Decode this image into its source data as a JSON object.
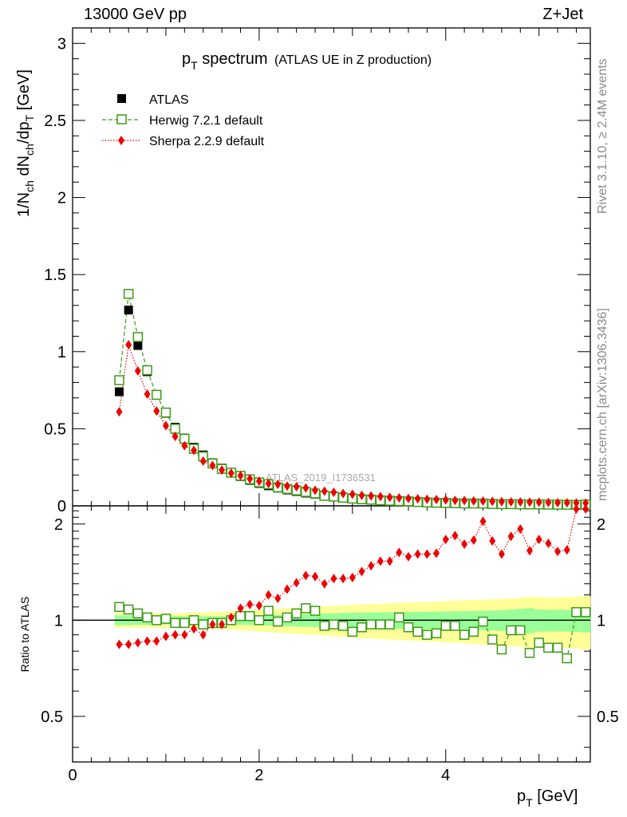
{
  "header": {
    "energy_label": "13000 GeV pp",
    "process_label": "Z+Jet",
    "analysis_watermark": "ATLAS_2019_I1736531"
  },
  "side_text": {
    "rivet": "Rivet 3.1.10, ≥ 2.4M events",
    "mcplots": "mcplots.cern.ch [arXiv:1306.3436]"
  },
  "colors": {
    "atlas": "#000000",
    "herwig": "#3a9b16",
    "sherpa": "#ee0000",
    "band_inner": "#99ff99",
    "band_outer": "#ffff99"
  },
  "chart_data": [
    {
      "type": "scatter",
      "title_main": "p",
      "title_sub": "T",
      "title_rest": " spectrum",
      "title_note": "(ATLAS UE in Z production)",
      "ylabel": "1/N_ch dN_ch/dp_T [GeV]",
      "xlim": [
        0,
        5.55
      ],
      "ylim": [
        0,
        3.1
      ],
      "yticks": [
        "0",
        "0.5",
        "1",
        "1.5",
        "2",
        "2.5",
        "3"
      ],
      "legend_position": "top-left",
      "x": [
        0.5,
        0.6,
        0.7,
        0.8,
        0.9,
        1.0,
        1.1,
        1.2,
        1.3,
        1.4,
        1.5,
        1.6,
        1.7,
        1.8,
        1.9,
        2.0,
        2.1,
        2.2,
        2.3,
        2.4,
        2.5,
        2.6,
        2.7,
        2.8,
        2.9,
        3.0,
        3.1,
        3.2,
        3.3,
        3.4,
        3.5,
        3.6,
        3.7,
        3.8,
        3.9,
        4.0,
        4.1,
        4.2,
        4.3,
        4.4,
        4.5,
        4.6,
        4.7,
        4.8,
        4.9,
        5.0,
        5.1,
        5.2,
        5.3,
        5.4,
        5.5
      ],
      "series": [
        {
          "name": "ATLAS",
          "values": [
            0.74,
            1.27,
            1.04,
            0.87,
            0.72,
            0.6,
            0.51,
            0.44,
            0.38,
            0.33,
            0.28,
            0.245,
            0.215,
            0.19,
            0.165,
            0.145,
            0.13,
            0.115,
            0.103,
            0.093,
            0.083,
            0.075,
            0.068,
            0.061,
            0.055,
            0.05,
            0.045,
            0.041,
            0.037,
            0.034,
            0.031,
            0.028,
            0.026,
            0.024,
            0.022,
            0.02,
            0.018,
            0.017,
            0.016,
            0.015,
            0.014,
            0.013,
            0.012,
            0.011,
            0.011,
            0.01,
            0.01,
            0.009,
            0.009,
            0.008,
            0.008
          ]
        },
        {
          "name": "Herwig 7.2.1 default",
          "values": [
            0.815,
            1.375,
            1.095,
            0.88,
            0.72,
            0.605,
            0.5,
            0.435,
            0.37,
            0.32,
            0.275,
            0.24,
            0.215,
            0.195,
            0.172,
            0.152,
            0.14,
            0.12,
            0.11,
            0.1,
            0.09,
            0.08,
            0.065,
            0.06,
            0.053,
            0.047,
            0.043,
            0.04,
            0.036,
            0.033,
            0.031,
            0.029,
            0.025,
            0.022,
            0.02,
            0.019,
            0.017,
            0.015,
            0.015,
            0.015,
            0.012,
            0.011,
            0.011,
            0.01,
            0.009,
            0.009,
            0.008,
            0.008,
            0.007,
            0.006,
            0.008
          ]
        },
        {
          "name": "Sherpa 2.2.9 default",
          "values": [
            0.61,
            1.045,
            0.875,
            0.725,
            0.615,
            0.52,
            0.45,
            0.39,
            0.36,
            0.29,
            0.262,
            0.232,
            0.212,
            0.196,
            0.176,
            0.16,
            0.145,
            0.14,
            0.128,
            0.124,
            0.116,
            0.101,
            0.095,
            0.088,
            0.08,
            0.075,
            0.068,
            0.064,
            0.06,
            0.055,
            0.052,
            0.048,
            0.046,
            0.043,
            0.041,
            0.038,
            0.035,
            0.034,
            0.032,
            0.031,
            0.029,
            0.027,
            0.026,
            0.025,
            0.024,
            0.023,
            0.022,
            0.021,
            0.02,
            0.019,
            0.018
          ]
        }
      ]
    },
    {
      "type": "scatter",
      "ylabel": "Ratio to ATLAS",
      "xlabel_main": "p",
      "xlabel_sub": "T",
      "xlabel_rest": " [GeV]",
      "xlim": [
        0,
        5.55
      ],
      "ylim": [
        0.36,
        2.28
      ],
      "ylog": true,
      "xticks": [
        "0",
        "2",
        "4"
      ],
      "yticks": [
        "0.5",
        "1",
        "2"
      ],
      "x": [
        0.5,
        0.6,
        0.7,
        0.8,
        0.9,
        1.0,
        1.1,
        1.2,
        1.3,
        1.4,
        1.5,
        1.6,
        1.7,
        1.8,
        1.9,
        2.0,
        2.1,
        2.2,
        2.3,
        2.4,
        2.5,
        2.6,
        2.7,
        2.8,
        2.9,
        3.0,
        3.1,
        3.2,
        3.3,
        3.4,
        3.5,
        3.6,
        3.7,
        3.8,
        3.9,
        4.0,
        4.1,
        4.2,
        4.3,
        4.4,
        4.5,
        4.6,
        4.7,
        4.8,
        4.9,
        5.0,
        5.1,
        5.2,
        5.3,
        5.4,
        5.5
      ],
      "band_inner": [
        0.035,
        0.035,
        0.033,
        0.032,
        0.031,
        0.03,
        0.029,
        0.028,
        0.028,
        0.028,
        0.028,
        0.029,
        0.03,
        0.032,
        0.034,
        0.036,
        0.038,
        0.04,
        0.042,
        0.044,
        0.046,
        0.048,
        0.05,
        0.052,
        0.054,
        0.055,
        0.056,
        0.057,
        0.058,
        0.059,
        0.06,
        0.061,
        0.062,
        0.063,
        0.064,
        0.065,
        0.066,
        0.067,
        0.068,
        0.07,
        0.072,
        0.075,
        0.08,
        0.085,
        0.09,
        0.08,
        0.078,
        0.078,
        0.078,
        0.08,
        0.085
      ],
      "band_outer": [
        0.055,
        0.055,
        0.053,
        0.052,
        0.052,
        0.052,
        0.052,
        0.053,
        0.055,
        0.057,
        0.06,
        0.063,
        0.066,
        0.07,
        0.074,
        0.078,
        0.082,
        0.086,
        0.09,
        0.094,
        0.098,
        0.102,
        0.106,
        0.11,
        0.114,
        0.118,
        0.121,
        0.124,
        0.127,
        0.13,
        0.133,
        0.136,
        0.139,
        0.142,
        0.145,
        0.148,
        0.151,
        0.154,
        0.157,
        0.16,
        0.163,
        0.166,
        0.17,
        0.175,
        0.185,
        0.18,
        0.18,
        0.18,
        0.18,
        0.185,
        0.19
      ],
      "series": [
        {
          "name": "Herwig 7.2.1 default",
          "values": [
            1.1,
            1.08,
            1.05,
            1.02,
            1.0,
            1.01,
            0.98,
            0.98,
            1.0,
            0.97,
            0.98,
            0.98,
            1.0,
            1.03,
            1.03,
            1.0,
            1.07,
            0.99,
            1.02,
            1.05,
            1.09,
            1.07,
            0.96,
            0.97,
            0.96,
            0.92,
            0.95,
            0.97,
            0.97,
            0.97,
            1.02,
            0.95,
            0.92,
            0.9,
            0.91,
            0.96,
            0.96,
            0.9,
            0.92,
            0.99,
            0.87,
            0.81,
            0.93,
            0.93,
            0.79,
            0.85,
            0.82,
            0.82,
            0.76,
            1.06,
            1.06
          ]
        },
        {
          "name": "Sherpa 2.2.9 default",
          "values": [
            0.84,
            0.84,
            0.85,
            0.86,
            0.86,
            0.89,
            0.9,
            0.9,
            0.94,
            0.9,
            0.97,
            0.97,
            1.02,
            1.09,
            1.12,
            1.11,
            1.2,
            1.17,
            1.25,
            1.31,
            1.38,
            1.37,
            1.3,
            1.35,
            1.35,
            1.36,
            1.42,
            1.48,
            1.53,
            1.53,
            1.63,
            1.58,
            1.61,
            1.61,
            1.62,
            1.79,
            1.84,
            1.73,
            1.78,
            2.04,
            1.77,
            1.61,
            1.83,
            1.93,
            1.65,
            1.79,
            1.74,
            1.64,
            1.66,
            2.23,
            2.23
          ]
        }
      ]
    }
  ]
}
